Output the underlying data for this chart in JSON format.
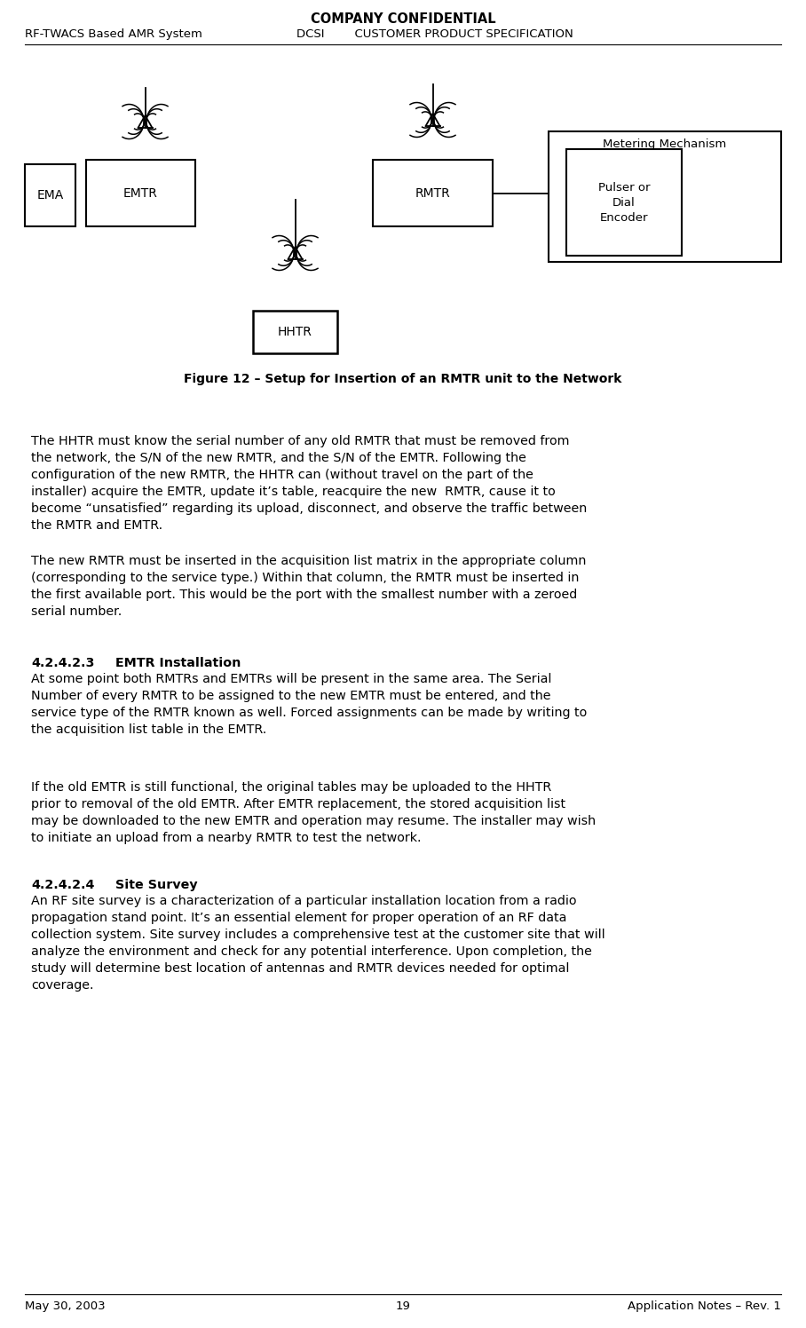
{
  "title_center": "COMPANY CONFIDENTIAL",
  "header_left": "RF-TWACS Based AMR System",
  "header_center": "DCSI",
  "header_right": "CUSTOMER PRODUCT SPECIFICATION",
  "footer_left": "May 30, 2003",
  "footer_center": "19",
  "footer_right": "Application Notes – Rev. 1",
  "figure_caption": "Figure 12 – Setup for Insertion of an RMTR unit to the Network",
  "para1": "The HHTR must know the serial number of any old RMTR that must be removed from\nthe network, the S/N of the new RMTR, and the S/N of the EMTR. Following the\nconfiguration of the new RMTR, the HHTR can (without travel on the part of the\ninstaller) acquire the EMTR, update it’s table, reacquire the new  RMTR, cause it to\nbecome “unsatisfied” regarding its upload, disconnect, and observe the traffic between\nthe RMTR and EMTR.",
  "para2": "The new RMTR must be inserted in the acquisition list matrix in the appropriate column\n(corresponding to the service type.) Within that column, the RMTR must be inserted in\nthe first available port. This would be the port with the smallest number with a zeroed\nserial number.",
  "sec3_num": "4.2.4.2.3",
  "sec3_title": "EMTR Installation",
  "para3": "At some point both RMTRs and EMTRs will be present in the same area. The Serial\nNumber of every RMTR to be assigned to the new EMTR must be entered, and the\nservice type of the RMTR known as well. Forced assignments can be made by writing to\nthe acquisition list table in the EMTR.",
  "para4": "If the old EMTR is still functional, the original tables may be uploaded to the HHTR\nprior to removal of the old EMTR. After EMTR replacement, the stored acquisition list\nmay be downloaded to the new EMTR and operation may resume. The installer may wish\nto initiate an upload from a nearby RMTR to test the network.",
  "sec5_num": "4.2.4.2.4",
  "sec5_title": "Site Survey",
  "para5": "An RF site survey is a characterization of a particular installation location from a radio\npropagation stand point. It’s an essential element for proper operation of an RF data\ncollection system. Site survey includes a comprehensive test at the customer site that will\nanalyze the environment and check for any potential interference. Upon completion, the\nstudy will determine best location of antennas and RMTR devices needed for optimal\ncoverage.",
  "bg_color": "#ffffff",
  "text_color": "#000000"
}
